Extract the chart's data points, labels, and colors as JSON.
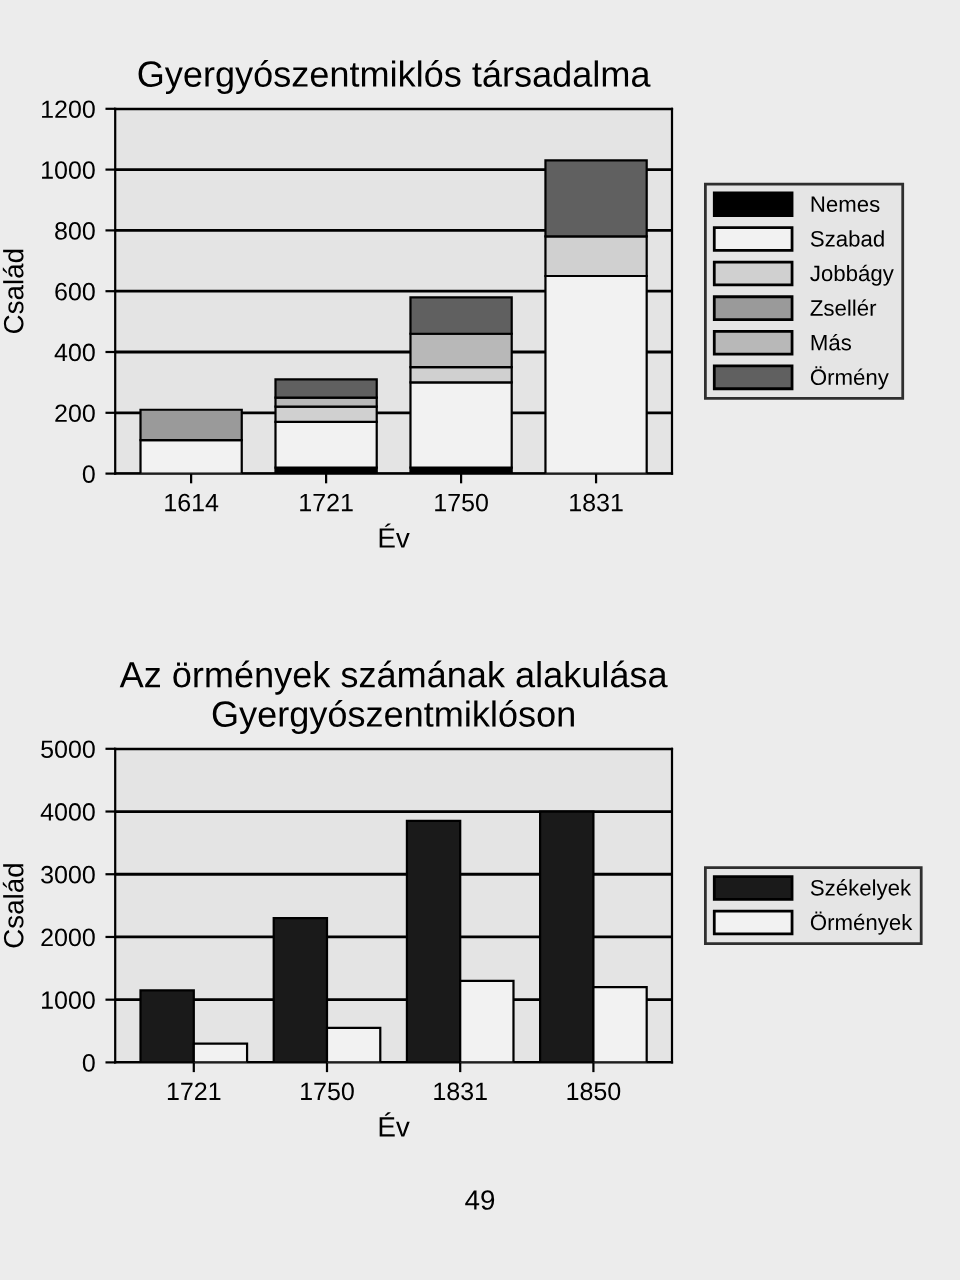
{
  "chart_data": [
    {
      "type": "bar",
      "title": "Gyergyószentmiklós társadalma",
      "xlabel": "Év",
      "ylabel": "Család",
      "categories": [
        "1614",
        "1721",
        "1750",
        "1831"
      ],
      "stacked": true,
      "ylim": [
        0,
        1200
      ],
      "yticks": [
        0,
        200,
        400,
        600,
        800,
        1000,
        1200
      ],
      "grid": "y",
      "legend": "right",
      "series": [
        {
          "name": "Nemes",
          "color": "#000000",
          "values": [
            0,
            20,
            20,
            0
          ]
        },
        {
          "name": "Szabad",
          "color": "#f2f2f2",
          "values": [
            110,
            150,
            280,
            650
          ]
        },
        {
          "name": "Jobbágy",
          "color": "#d0d0d0",
          "values": [
            0,
            50,
            50,
            130
          ]
        },
        {
          "name": "Zsellér",
          "color": "#9a9a9a",
          "values": [
            100,
            0,
            0,
            0
          ]
        },
        {
          "name": "Más",
          "color": "#b8b8b8",
          "values": [
            0,
            30,
            110,
            0
          ]
        },
        {
          "name": "Örmény",
          "color": "#606060",
          "values": [
            0,
            60,
            120,
            250
          ]
        }
      ]
    },
    {
      "type": "bar",
      "title": "Az örmények számának alakulása\nGyergyószentmiklóson",
      "xlabel": "Év",
      "ylabel": "Család",
      "categories": [
        "1721",
        "1750",
        "1831",
        "1850"
      ],
      "ylim": [
        0,
        5000
      ],
      "yticks": [
        0,
        1000,
        2000,
        3000,
        4000,
        5000
      ],
      "grid": "y",
      "legend": "right",
      "annotations": [
        "49"
      ],
      "series": [
        {
          "name": "Székelyek",
          "color": "#1a1a1a",
          "values": [
            1150,
            2300,
            3850,
            4000
          ]
        },
        {
          "name": "Örmények",
          "color": "#f2f2f2",
          "values": [
            300,
            550,
            1300,
            1200
          ]
        }
      ]
    }
  ]
}
